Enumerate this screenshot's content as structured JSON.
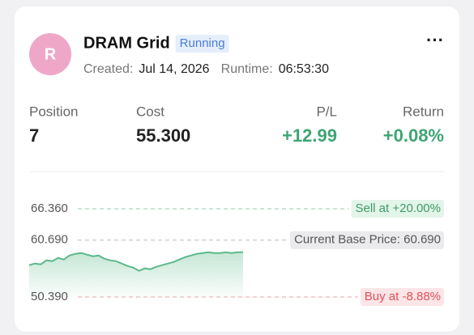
{
  "header": {
    "avatar": "R",
    "title": "DRAM Grid",
    "status": "Running",
    "created_label": "Created:",
    "created": "Jul 14, 2026",
    "runtime_label": "Runtime:",
    "runtime": "06:53:30",
    "menu": "···"
  },
  "stats": [
    {
      "label": "Position",
      "value": "7"
    },
    {
      "label": "Cost",
      "value": "55.300"
    },
    {
      "label": "P/L",
      "value": "+12.99"
    },
    {
      "label": "Return",
      "value": "+0.08%"
    }
  ],
  "chart": {
    "levels": [
      {
        "price": {
          "value": 66.36,
          "label": "66.360"
        },
        "tag": "Sell at +20.00%",
        "color": "#3e9b66",
        "bg": "#e3f4e9",
        "dash": "#8fcfa8"
      },
      {
        "price": {
          "value": 60.69,
          "label": "60.690"
        },
        "tag": "Current Base Price: 60.690",
        "color": "#555555",
        "bg": "#ebebed",
        "dash": "#bbbbbb"
      },
      {
        "price": {
          "value": 50.39,
          "label": "50.390"
        },
        "tag": "Buy at -8.88%",
        "color": "#e0505a",
        "bg": "#fbe5e7",
        "dash": "#eea3a8"
      }
    ],
    "line_color": "#5cb98a",
    "line": [
      56.15,
      56.44,
      56.3,
      57.03,
      56.88,
      57.47,
      57.17,
      57.91,
      58.2,
      58.35,
      58.05,
      57.76,
      57.91,
      57.32,
      57.03,
      56.88,
      56.44,
      56.0,
      55.71,
      55.12,
      55.56,
      55.42,
      55.86,
      56.15,
      56.44,
      56.74,
      57.17,
      57.61,
      57.91,
      58.2,
      58.35,
      58.49,
      58.35,
      58.35,
      58.49,
      58.35,
      58.49,
      58.49
    ]
  }
}
